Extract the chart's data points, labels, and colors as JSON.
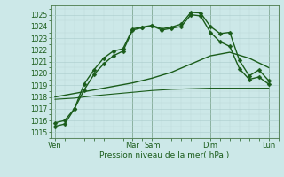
{
  "background_color": "#cce8e8",
  "grid_color_major": "#aacccc",
  "grid_color_minor": "#bbd8d8",
  "line_color": "#1a5c1a",
  "xlabel": "Pression niveau de la mer( hPa )",
  "ylim": [
    1014.5,
    1025.8
  ],
  "yticks": [
    1015,
    1016,
    1017,
    1018,
    1019,
    1020,
    1021,
    1022,
    1023,
    1024,
    1025
  ],
  "xtick_positions": [
    0,
    4,
    5,
    8,
    11
  ],
  "xtick_labels": [
    "Ven",
    "Mar",
    "Sam",
    "Dim",
    "Lun"
  ],
  "vline_positions": [
    0,
    4,
    5,
    8,
    11
  ],
  "xlim": [
    -0.2,
    11.5
  ],
  "series": [
    {
      "x": [
        0,
        0.5,
        1,
        1.5,
        2,
        2.5,
        3,
        3.5,
        4,
        4.5,
        5,
        5.5,
        6,
        6.5,
        7,
        7.5,
        8,
        8.5,
        9,
        9.5,
        10,
        10.5,
        11
      ],
      "y": [
        1015.8,
        1016.0,
        1017.0,
        1019.1,
        1020.3,
        1021.3,
        1021.9,
        1022.1,
        1023.8,
        1023.95,
        1024.1,
        1023.8,
        1023.95,
        1024.2,
        1025.2,
        1025.15,
        1024.0,
        1023.4,
        1023.5,
        1021.1,
        1019.8,
        1020.3,
        1019.4
      ],
      "marker": "D",
      "markersize": 2.5,
      "linewidth": 1.0
    },
    {
      "x": [
        0,
        0.5,
        1,
        1.5,
        2,
        2.5,
        3,
        3.5,
        4,
        4.5,
        5,
        5.5,
        6,
        6.5,
        7,
        7.5,
        8,
        8.5,
        9,
        9.5,
        10,
        10.5,
        11
      ],
      "y": [
        1015.5,
        1015.7,
        1017.0,
        1018.6,
        1019.9,
        1020.8,
        1021.5,
        1021.9,
        1023.7,
        1023.9,
        1024.05,
        1023.7,
        1023.85,
        1024.0,
        1025.0,
        1024.9,
        1023.5,
        1022.7,
        1022.3,
        1020.4,
        1019.5,
        1019.7,
        1019.1
      ],
      "marker": "D",
      "markersize": 2.5,
      "linewidth": 1.0
    },
    {
      "x": [
        0,
        1,
        2,
        3,
        4,
        5,
        6,
        7,
        8,
        9,
        10,
        11
      ],
      "y": [
        1018.0,
        1018.3,
        1018.6,
        1018.9,
        1019.2,
        1019.6,
        1020.1,
        1020.8,
        1021.5,
        1021.8,
        1021.3,
        1020.5
      ],
      "marker": null,
      "markersize": 0,
      "linewidth": 1.0
    },
    {
      "x": [
        0,
        1,
        2,
        3,
        4,
        5,
        6,
        7,
        8,
        9,
        10,
        11
      ],
      "y": [
        1017.8,
        1017.9,
        1018.1,
        1018.25,
        1018.4,
        1018.55,
        1018.65,
        1018.7,
        1018.75,
        1018.75,
        1018.75,
        1018.75
      ],
      "marker": null,
      "markersize": 0,
      "linewidth": 0.8
    }
  ]
}
